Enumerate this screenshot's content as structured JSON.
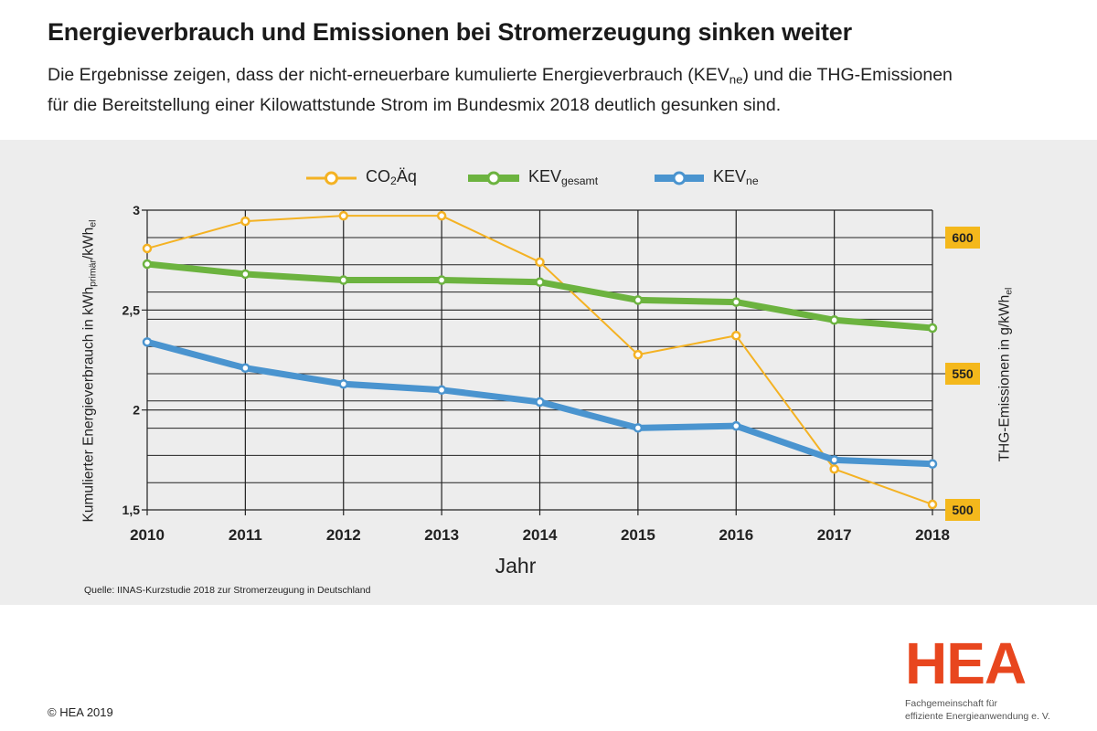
{
  "header": {
    "title": "Energieverbrauch und Emissionen bei Stromerzeugung sinken weiter",
    "subtitle_pre": "Die Ergebnisse zeigen, dass der nicht-erneuerbare kumulierte Energieverbrauch (",
    "subtitle_kev": "KEV",
    "subtitle_sub": "ne",
    "subtitle_post": ") und die THG-Emissionen",
    "subtitle_line2": "für die Bereitstellung einer Kilowattstunde Strom im Bundesmix 2018 deutlich gesunken sind."
  },
  "chart_data": {
    "type": "line",
    "x": [
      2010,
      2011,
      2012,
      2013,
      2014,
      2015,
      2016,
      2017,
      2018
    ],
    "xlabel": "Jahr",
    "ylabel": {
      "main": "Kumulierter Energieverbrauch in kWh",
      "sub1": "primär",
      "mid": "/kWh",
      "sub2": "el"
    },
    "y2label": {
      "main": "THG-Emissionen in g/kWh",
      "sub": "el"
    },
    "ylim": [
      1.5,
      3
    ],
    "yticks": [
      "3",
      "2,5",
      "2",
      "1,5"
    ],
    "y2lim": [
      500,
      610
    ],
    "y2ticks": [
      "600",
      "550",
      "500"
    ],
    "grid": true,
    "legend_position": "top",
    "series": [
      {
        "name": "CO",
        "name_sub": "2",
        "name_post": "Äq",
        "axis": "right",
        "color": "#f4b223",
        "values": [
          596,
          606,
          608,
          608,
          591,
          557,
          564,
          515,
          502
        ]
      },
      {
        "name": "KEV",
        "name_sub": "gesamt",
        "name_post": "",
        "axis": "left",
        "color": "#6cb33f",
        "values": [
          2.73,
          2.68,
          2.65,
          2.65,
          2.64,
          2.55,
          2.54,
          2.45,
          2.41
        ]
      },
      {
        "name": "KEV",
        "name_sub": "ne",
        "name_post": "",
        "axis": "left",
        "color": "#4a94cf",
        "values": [
          2.34,
          2.21,
          2.13,
          2.1,
          2.04,
          1.91,
          1.92,
          1.75,
          1.73
        ]
      }
    ],
    "y2tick_color": "#f4b81c"
  },
  "source": "Quelle: IINAS-Kurzstudie 2018 zur Stromerzeugung in Deutschland",
  "footer": {
    "copyright": "© HEA 2019",
    "logo": "HEA",
    "logo_sub1": "Fachgemeinschaft für",
    "logo_sub2": "effiziente Energieanwendung e. V.",
    "logo_color": "#e8461e"
  }
}
